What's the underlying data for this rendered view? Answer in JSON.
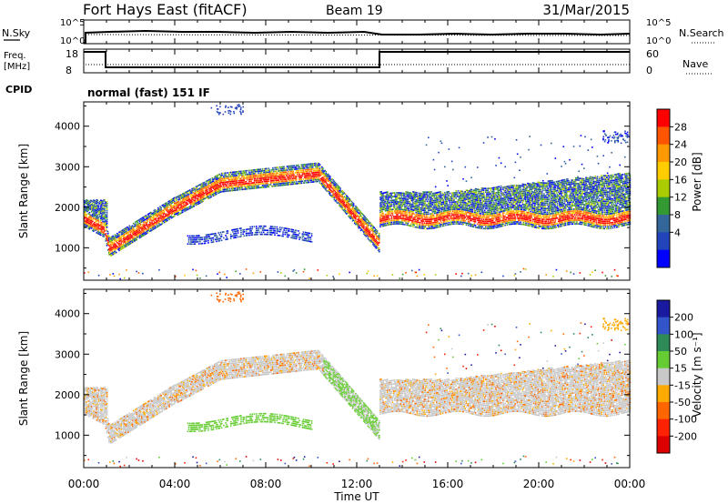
{
  "header": {
    "station": "Fort Hays East (fitACF)",
    "beam": "Beam 19",
    "date": "31/Mar/2015"
  },
  "panel_labels": {
    "nsky": "N.Sky",
    "nsearch": "N.Search",
    "freq_line1": "Freq.",
    "freq_line2": "[MHz]",
    "nave": "Nave",
    "cpid": "CPID",
    "cpid_value": "normal (fast) 151 IF"
  },
  "noise_axis": {
    "ticks": [
      "10^5",
      "10^0"
    ]
  },
  "freq_axis": {
    "left_ticks": [
      "18",
      "8"
    ],
    "right_ticks": [
      "60",
      "0"
    ]
  },
  "chart_data": [
    {
      "type": "heatmap",
      "name": "power",
      "xlabel": "Time UT",
      "ylabel": "Slant Range [km]",
      "xlim": [
        0,
        24
      ],
      "ylim": [
        200,
        4600
      ],
      "x_ticks": [
        "00:00",
        "04:00",
        "08:00",
        "12:00",
        "16:00",
        "20:00",
        "00:00"
      ],
      "y_ticks": [
        1000,
        2000,
        3000,
        4000
      ],
      "colorbar": {
        "label": "Power [dB]",
        "ticks": [
          "28",
          "24",
          "20",
          "16",
          "12",
          "8",
          "4"
        ],
        "colors": [
          "#ff0000",
          "#ff5500",
          "#ff9900",
          "#ffcc00",
          "#aacc00",
          "#339933",
          "#336699",
          "#2244bb",
          "#0000ff"
        ]
      }
    },
    {
      "type": "heatmap",
      "name": "velocity",
      "xlabel": "Time UT",
      "ylabel": "Slant Range [km]",
      "xlim": [
        0,
        24
      ],
      "ylim": [
        200,
        4600
      ],
      "x_ticks": [
        "00:00",
        "04:00",
        "08:00",
        "12:00",
        "16:00",
        "20:00",
        "00:00"
      ],
      "y_ticks": [
        1000,
        2000,
        3000,
        4000
      ],
      "colorbar": {
        "label": "Velocity [m s⁻¹]",
        "ticks": [
          "200",
          "100",
          "50",
          "15",
          "-15",
          "-50",
          "-100",
          "-200"
        ],
        "colors": [
          "#1a1aa0",
          "#3355cc",
          "#2e8b57",
          "#66cc33",
          "#c8c8c8",
          "#ffaa00",
          "#ff6600",
          "#ff2200",
          "#dd0000"
        ]
      }
    }
  ]
}
